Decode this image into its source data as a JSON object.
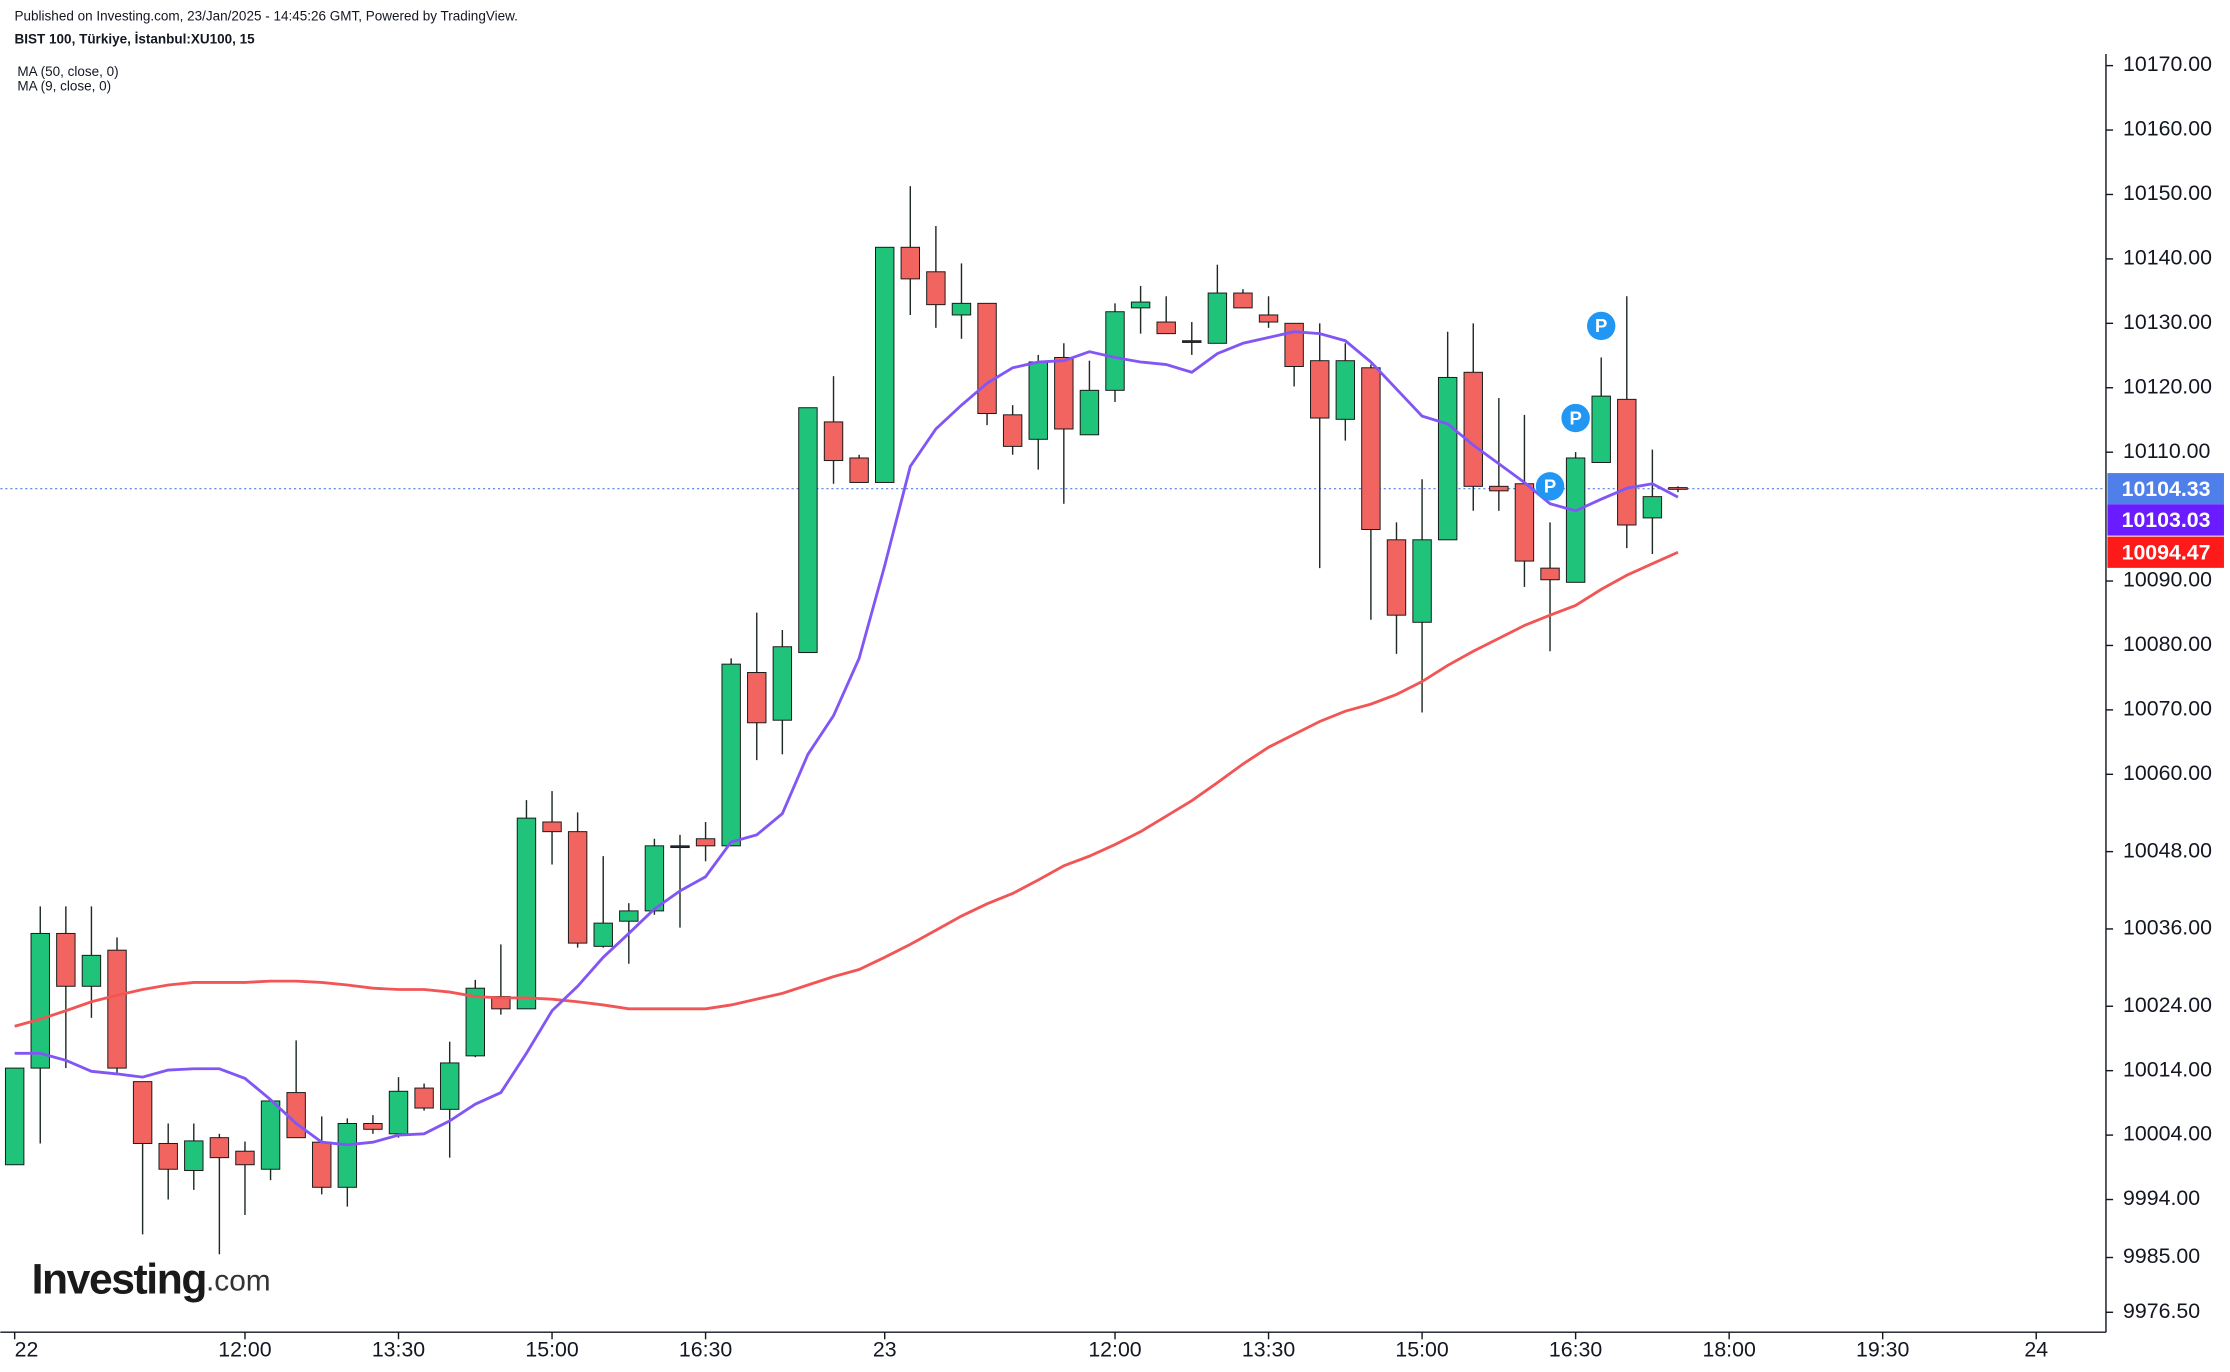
{
  "chart_data": {
    "type": "candlestick",
    "header": "Published on Investing.com, 23/Jan/2025 - 14:45:26 GMT, Powered by TradingView.",
    "title": "BIST 100, Türkiye, İstanbul:XU100, 15",
    "up_color": "#1fc47a",
    "down_color": "#f2645f",
    "candles": {
      "x": [
        0,
        1,
        2,
        3,
        4,
        5,
        6,
        7,
        8,
        9,
        10,
        11,
        12,
        13,
        14,
        15,
        16,
        17,
        18,
        19,
        20,
        21,
        22,
        23,
        24,
        25,
        26,
        27,
        28,
        29,
        30,
        31,
        32,
        33,
        34,
        35,
        36,
        37,
        38,
        39,
        40,
        41,
        42,
        43,
        44,
        45,
        46,
        47,
        48,
        49,
        50,
        51,
        52,
        53,
        54,
        55,
        56,
        57,
        58,
        59,
        60,
        61,
        62,
        63,
        64,
        65
      ],
      "open": [
        9999.4,
        10014.4,
        10035.3,
        10027.1,
        10032.7,
        10012.3,
        10002.7,
        9998.5,
        10003.6,
        10001.5,
        9998.7,
        10010.6,
        10002.9,
        9995.9,
        10005.8,
        10004.2,
        10011.3,
        10008,
        10016.3,
        10025.5,
        10023.6,
        10052.6,
        10051.1,
        10033.3,
        10037.2,
        10038.8,
        10048.9,
        10050,
        10048.9,
        10075.8,
        10068.4,
        10078.9,
        10114.7,
        10109.1,
        10105.3,
        10141.8,
        10138,
        10131.3,
        10133.1,
        10115.8,
        10112,
        10124.7,
        10112.7,
        10119.6,
        10132.4,
        10130.2,
        10127.3,
        10126.9,
        10134.7,
        10131.3,
        10130,
        10124.2,
        10115.1,
        10123.1,
        10096.4,
        10083.6,
        10096.4,
        10122.4,
        10104.7,
        10105.1,
        10092,
        10089.8,
        10108.4,
        10118.2,
        10099.8,
        10104.5
      ],
      "high": [
        10014.4,
        10039.5,
        10039.5,
        10039.5,
        10034.7,
        10012.3,
        10005.8,
        10005.8,
        10004.2,
        10003,
        10009.3,
        10018.7,
        10006.9,
        10006.6,
        10007.1,
        10013,
        10012,
        10018.5,
        10028.1,
        10033.6,
        10056,
        10057.4,
        10054.1,
        10047.3,
        10040,
        10050,
        10050.6,
        10052.6,
        10078,
        10085.1,
        10082.4,
        10116.9,
        10121.8,
        10109.6,
        10141.8,
        10151.3,
        10145.1,
        10139.3,
        10133.1,
        10117.3,
        10125.1,
        10126.9,
        10124.2,
        10133.1,
        10135.8,
        10134.2,
        10130.2,
        10139.1,
        10135.3,
        10134.2,
        10130,
        10130,
        10126.9,
        10123.6,
        10099.1,
        10105.8,
        10128.7,
        10130,
        10118.4,
        10115.8,
        10099.1,
        10110,
        10124.7,
        10134.2,
        10110.4,
        10104.7
      ],
      "low": [
        9999.4,
        10002.7,
        10014.4,
        10022.2,
        10013.5,
        9988.6,
        9994,
        9995.5,
        9985.5,
        9991.6,
        9997,
        10003.6,
        9994.8,
        9992.9,
        10004.2,
        10003.6,
        10007.8,
        10000.5,
        10016.1,
        10022.7,
        10023.6,
        10046,
        10033.1,
        10033.1,
        10030.6,
        10038.2,
        10036.2,
        10046.5,
        10048.9,
        10062.2,
        10063.1,
        10078.9,
        10105.1,
        10105.3,
        10105.3,
        10131.3,
        10129.3,
        10127.6,
        10114.2,
        10109.6,
        10107.3,
        10102,
        10112.7,
        10117.8,
        10128.4,
        10128.4,
        10125.1,
        10126.9,
        10132.4,
        10129.3,
        10120.2,
        10092,
        10111.8,
        10084,
        10078.7,
        10069.6,
        10096.4,
        10100.9,
        10100.9,
        10089.1,
        10079.1,
        10089.8,
        10108.4,
        10095.1,
        10094.2,
        10103.8
      ],
      "close": [
        10014.4,
        10035.3,
        10027.1,
        10031.9,
        10014.4,
        10002.7,
        9998.7,
        10003.1,
        10000.5,
        9999.4,
        10009.3,
        10003.6,
        9995.9,
        10005.8,
        10004.9,
        10010.8,
        10008.2,
        10015.2,
        10026.8,
        10023.6,
        10053.2,
        10051.1,
        10033.8,
        10036.9,
        10038.8,
        10048.9,
        10048.9,
        10048.9,
        10077.1,
        10068,
        10079.8,
        10116.9,
        10108.7,
        10105.3,
        10141.8,
        10136.9,
        10132.9,
        10133.1,
        10116,
        10110.9,
        10124,
        10113.6,
        10119.6,
        10131.8,
        10133.3,
        10128.4,
        10127.3,
        10134.7,
        10132.4,
        10130.2,
        10123.3,
        10115.3,
        10124.2,
        10098,
        10084.7,
        10096.4,
        10121.6,
        10104.7,
        10104,
        10093.1,
        10090.2,
        10109.1,
        10118.7,
        10098.7,
        10103.1,
        10104.33
      ]
    },
    "series": [
      {
        "name": "MA (50, close, 0)",
        "color": "#f25555",
        "values": [
          10020.9,
          10022,
          10023.3,
          10024.7,
          10025.7,
          10026.6,
          10027.3,
          10027.7,
          10027.7,
          10027.7,
          10027.9,
          10027.9,
          10027.7,
          10027.3,
          10026.8,
          10026.6,
          10026.6,
          10026.2,
          10025.5,
          10025.3,
          10025.3,
          10025.1,
          10024.7,
          10024.2,
          10023.6,
          10023.6,
          10023.6,
          10023.6,
          10024.2,
          10025.1,
          10026,
          10027.3,
          10028.6,
          10029.7,
          10031.6,
          10033.6,
          10035.8,
          10038,
          10039.9,
          10041.5,
          10043.6,
          10045.8,
          10047.3,
          10049.1,
          10051.1,
          10053.5,
          10055.9,
          10058.7,
          10061.6,
          10064.2,
          10066.2,
          10068.2,
          10069.8,
          10070.9,
          10072.4,
          10074.4,
          10076.9,
          10079.1,
          10081.1,
          10083.1,
          10084.7,
          10086.2,
          10088.7,
          10090.9,
          10092.7,
          10094.47
        ]
      },
      {
        "name": "MA (9, close, 0)",
        "color": "#8256f5",
        "values": [
          10016.7,
          10016.7,
          10015.6,
          10013.9,
          10013.5,
          10013,
          10014.1,
          10014.3,
          10014.3,
          10012.8,
          10009.5,
          10005.8,
          10002.9,
          10002.5,
          10002.9,
          10004,
          10004.2,
          10006.2,
          10008.8,
          10010.6,
          10016.7,
          10023.3,
          10027.1,
          10031.6,
          10035.3,
          10039.1,
          10041.9,
          10044.1,
          10049.5,
          10050.6,
          10053.9,
          10063.1,
          10069.1,
          10078,
          10092.4,
          10107.8,
          10113.6,
          10117.3,
          10120.7,
          10123.1,
          10124,
          10124.2,
          10125.6,
          10124.7,
          10124,
          10123.6,
          10122.4,
          10125.3,
          10126.9,
          10127.8,
          10128.7,
          10128.4,
          10127.3,
          10124,
          10119.8,
          10115.6,
          10114.4,
          10111.1,
          10108.2,
          10105.3,
          10102,
          10100.9,
          10102.7,
          10104.4,
          10105.1,
          10103.03
        ]
      }
    ],
    "price_labels": [
      {
        "value": 10104.33,
        "label": "10104.33",
        "color": "#4f7fe8"
      },
      {
        "value": 10103.03,
        "label": "10103.03",
        "color": "#6a1bff"
      },
      {
        "value": 10094.47,
        "label": "10094.47",
        "color": "#ff1a1a"
      }
    ],
    "markers": [
      {
        "x": 60,
        "y": 10104.7,
        "label": "P"
      },
      {
        "x": 61,
        "y": 10115.3,
        "label": "P"
      },
      {
        "x": 62,
        "y": 10129.6,
        "label": "P"
      }
    ],
    "xlim": [
      -0.56,
      81.67
    ],
    "ylim": [
      9973.85,
      10171.8
    ],
    "xticks": [
      {
        "value": 0,
        "label": "22"
      },
      {
        "value": 9,
        "label": "12:00"
      },
      {
        "value": 15,
        "label": "13:30"
      },
      {
        "value": 21,
        "label": "15:00"
      },
      {
        "value": 27,
        "label": "16:30"
      },
      {
        "value": 34,
        "label": "23"
      },
      {
        "value": 43,
        "label": "12:00"
      },
      {
        "value": 49,
        "label": "13:30"
      },
      {
        "value": 55,
        "label": "15:00"
      },
      {
        "value": 61,
        "label": "16:30"
      },
      {
        "value": 67,
        "label": "18:00"
      },
      {
        "value": 73,
        "label": "19:30"
      },
      {
        "value": 79,
        "label": "24"
      }
    ],
    "yticks": [
      {
        "value": 10170,
        "label": "10170.00"
      },
      {
        "value": 10160,
        "label": "10160.00"
      },
      {
        "value": 10150,
        "label": "10150.00"
      },
      {
        "value": 10140,
        "label": "10140.00"
      },
      {
        "value": 10130,
        "label": "10130.00"
      },
      {
        "value": 10120,
        "label": "10120.00"
      },
      {
        "value": 10110,
        "label": "10110.00"
      },
      {
        "value": 10090,
        "label": "10090.00"
      },
      {
        "value": 10080,
        "label": "10080.00"
      },
      {
        "value": 10070,
        "label": "10070.00"
      },
      {
        "value": 10060,
        "label": "10060.00"
      },
      {
        "value": 10048,
        "label": "10048.00"
      },
      {
        "value": 10036,
        "label": "10036.00"
      },
      {
        "value": 10024,
        "label": "10024.00"
      },
      {
        "value": 10014,
        "label": "10014.00"
      },
      {
        "value": 10004,
        "label": "10004.00"
      },
      {
        "value": 9994,
        "label": "9994.00"
      },
      {
        "value": 9985,
        "label": "9985.00"
      },
      {
        "value": 9976.5,
        "label": "9976.50"
      }
    ],
    "logo": {
      "name": "Investing",
      "suffix": ".com"
    }
  }
}
